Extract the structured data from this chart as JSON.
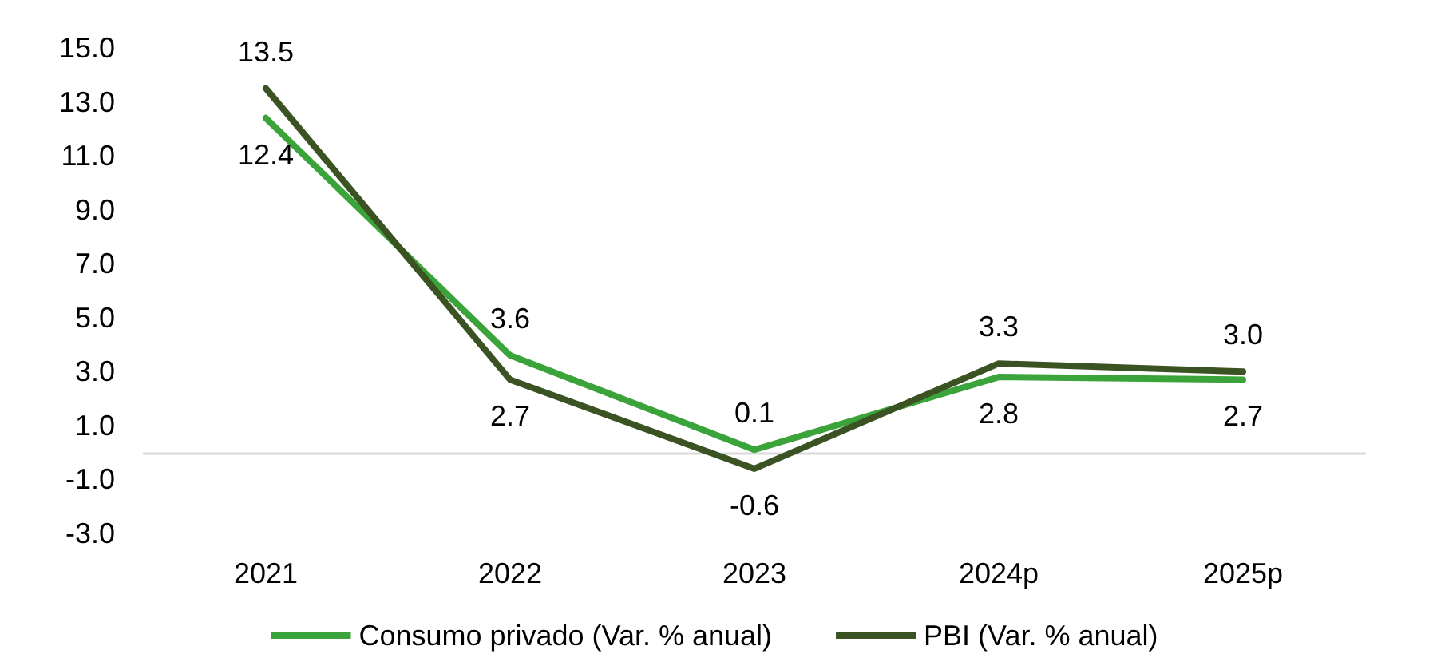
{
  "chart_data": {
    "type": "line",
    "categories": [
      "2021",
      "2022",
      "2023",
      "2024p",
      "2025p"
    ],
    "series": [
      {
        "name": "Consumo privado (Var. % anual)",
        "color": "#3aa33a",
        "values": [
          12.4,
          3.6,
          0.1,
          2.8,
          2.7
        ],
        "value_labels": [
          "12.4",
          "3.6",
          "0.1",
          "2.8",
          "2.7"
        ]
      },
      {
        "name": "PBI (Var. % anual)",
        "color": "#3b5323",
        "values": [
          13.5,
          2.7,
          -0.6,
          3.3,
          3.0
        ],
        "value_labels": [
          "13.5",
          "2.7",
          "-0.6",
          "3.3",
          "3.0"
        ]
      }
    ],
    "ylim": [
      -3,
      15
    ],
    "yticks": [
      {
        "value": -3,
        "label": "-3.0"
      },
      {
        "value": -1,
        "label": "-1.0"
      },
      {
        "value": 1,
        "label": "1.0"
      },
      {
        "value": 3,
        "label": "3.0"
      },
      {
        "value": 5,
        "label": "5.0"
      },
      {
        "value": 7,
        "label": "7.0"
      },
      {
        "value": 9,
        "label": "9.0"
      },
      {
        "value": 11,
        "label": "11.0"
      },
      {
        "value": 13,
        "label": "13.0"
      },
      {
        "value": 15,
        "label": "15.0"
      }
    ],
    "grid": false,
    "legend": "bottom",
    "marker": "none",
    "line_style": "solid"
  }
}
